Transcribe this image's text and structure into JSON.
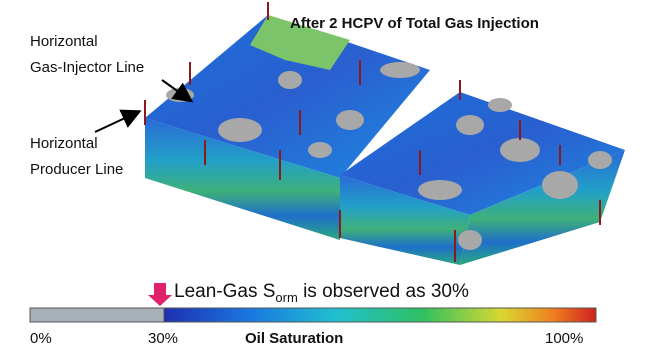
{
  "title": "After 2 HCPV of Total Gas Injection",
  "annotations": [
    {
      "lines": [
        "Horizontal",
        "Gas-Injector Line"
      ]
    },
    {
      "lines": [
        "Horizontal",
        "Producer Line"
      ]
    }
  ],
  "note": {
    "prefix": "Lean-Gas S",
    "subscript": "orm",
    "suffix": " is observed as 30%"
  },
  "colorbar": {
    "label": "Oil Saturation",
    "ticks": [
      "0%",
      "30%",
      "100%"
    ]
  }
}
